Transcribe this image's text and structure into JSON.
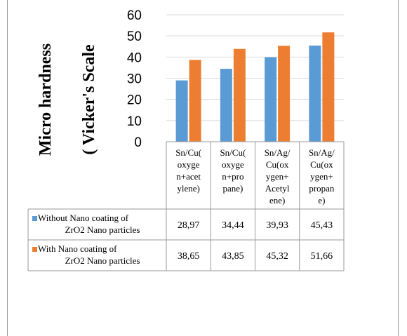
{
  "chart_data": {
    "type": "bar",
    "categories": [
      [
        "Sn/Cu(",
        "oxyge",
        "n+acet",
        "ylene)"
      ],
      [
        "Sn/Cu(",
        "oxyge",
        "n+pro",
        "pane)"
      ],
      [
        "Sn/Ag/",
        "Cu(ox",
        "ygen+",
        "Acetyl",
        "ene)"
      ],
      [
        "Sn/Ag/",
        "Cu(ox",
        "ygen+",
        "propan",
        "e)"
      ]
    ],
    "series": [
      {
        "name_lines": [
          "Without Nano coating of",
          "ZrO2 Nano particles"
        ],
        "values": [
          28.97,
          34.44,
          39.93,
          45.43
        ],
        "labels": [
          "28,97",
          "34,44",
          "39,93",
          "45,43"
        ],
        "color": "#5b9bd5"
      },
      {
        "name_lines": [
          "With Nano coating of",
          "ZrO2 Nano particles"
        ],
        "values": [
          38.65,
          43.85,
          45.32,
          51.66
        ],
        "labels": [
          "38,65",
          "43,85",
          "45,32",
          "51,66"
        ],
        "color": "#ed7d31"
      }
    ],
    "ylabel_lines": [
      "Micro hardness",
      "( Vicker's Scale"
    ],
    "yticks": [
      0,
      10,
      20,
      30,
      40,
      50,
      60
    ],
    "ylim": [
      0,
      60
    ],
    "grid": true,
    "legend": "data-table"
  }
}
